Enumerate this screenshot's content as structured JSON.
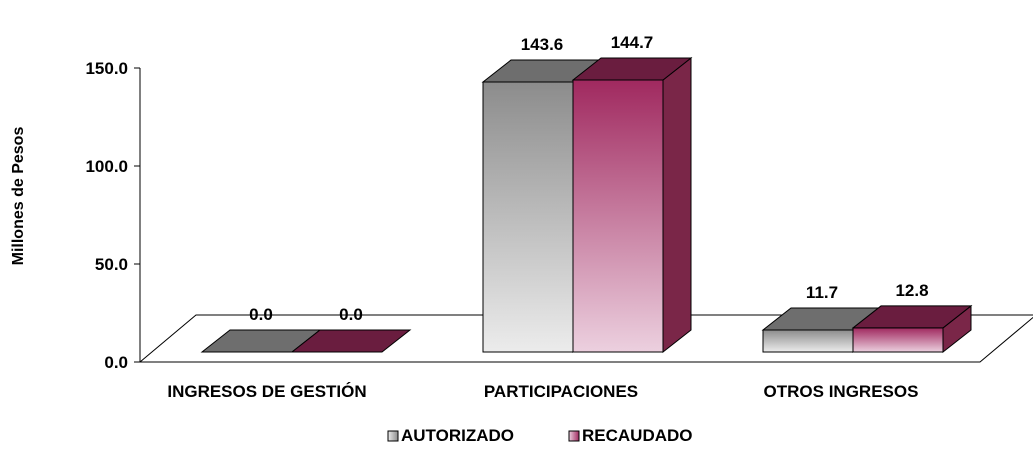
{
  "chart_data": {
    "type": "bar",
    "title": "",
    "xlabel": "",
    "ylabel": "Millones de Pesos",
    "ylim": [
      0,
      150
    ],
    "yticks": [
      "0.0",
      "50.0",
      "100.0",
      "150.0"
    ],
    "categories": [
      "INGRESOS DE GESTIÓN",
      "PARTICIPACIONES",
      "OTROS INGRESOS"
    ],
    "series": [
      {
        "name": "AUTORIZADO",
        "values": [
          0.0,
          143.6,
          11.7
        ],
        "labels": [
          "0.0",
          "143.6",
          "11.7"
        ]
      },
      {
        "name": "RECAUDADO",
        "values": [
          0.0,
          144.7,
          12.8
        ],
        "labels": [
          "0.0",
          "144.7",
          "12.8"
        ]
      }
    ],
    "legend_position": "bottom",
    "grid": false,
    "style": "3d"
  },
  "colors": {
    "autorizado_front_top": "#8c8c8c",
    "autorizado_front_bottom": "#ececec",
    "autorizado_top": "#6e6e6e",
    "autorizado_side": "#8a8a8a",
    "recaudado_front_top": "#a0295f",
    "recaudado_front_bottom": "#ecd0df",
    "recaudado_top": "#6a1d3f",
    "recaudado_side": "#7a2648",
    "floor": "#ffffff",
    "axis": "#000000"
  }
}
